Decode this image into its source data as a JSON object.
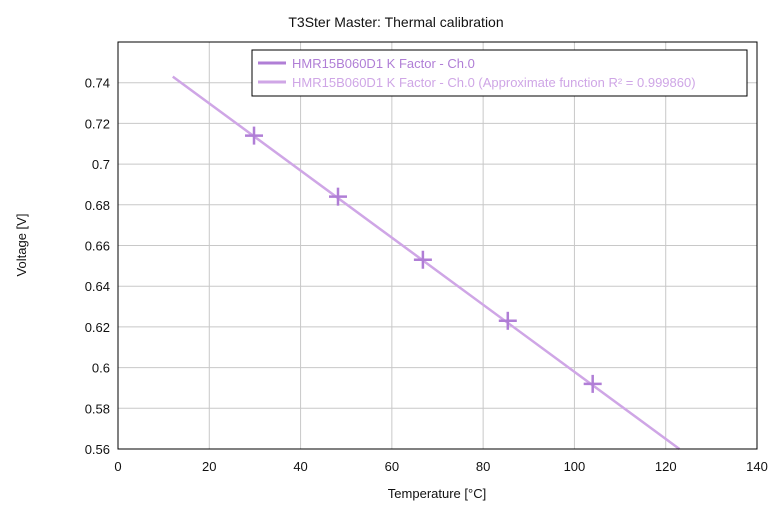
{
  "chart_data": {
    "type": "line",
    "title": "T3Ster Master: Thermal calibration",
    "xlabel": "Temperature [°C]",
    "ylabel": "Voltage [V]",
    "xlim": [
      0,
      140
    ],
    "ylim": [
      0.56,
      0.76
    ],
    "x_ticks": [
      0,
      20,
      40,
      60,
      80,
      100,
      120,
      140
    ],
    "y_ticks": [
      0.56,
      0.58,
      0.6,
      0.62,
      0.64,
      0.66,
      0.68,
      0.7,
      0.72,
      0.74
    ],
    "x_tick_labels": [
      "0",
      "20",
      "40",
      "60",
      "80",
      "100",
      "120",
      "140"
    ],
    "y_tick_labels": [
      "0.56",
      "0.58",
      "0.6",
      "0.62",
      "0.64",
      "0.66",
      "0.68",
      "0.7",
      "0.72",
      "0.74"
    ],
    "grid": true,
    "legend_position": "top-right",
    "series": [
      {
        "name": "HMR15B060D1 K Factor - Ch.0",
        "color": "#b07ed6",
        "marker": "plus",
        "x": [
          29.8,
          48.2,
          66.8,
          85.4,
          104.0
        ],
        "y": [
          0.714,
          0.684,
          0.653,
          0.623,
          0.592
        ]
      },
      {
        "name": "HMR15B060D1 K Factor - Ch.0 (Approximate function R² = 0.999860)",
        "color": "#cfa6e6",
        "marker": "none",
        "x": [
          12,
          123
        ],
        "y": [
          0.743,
          0.56
        ]
      }
    ]
  }
}
